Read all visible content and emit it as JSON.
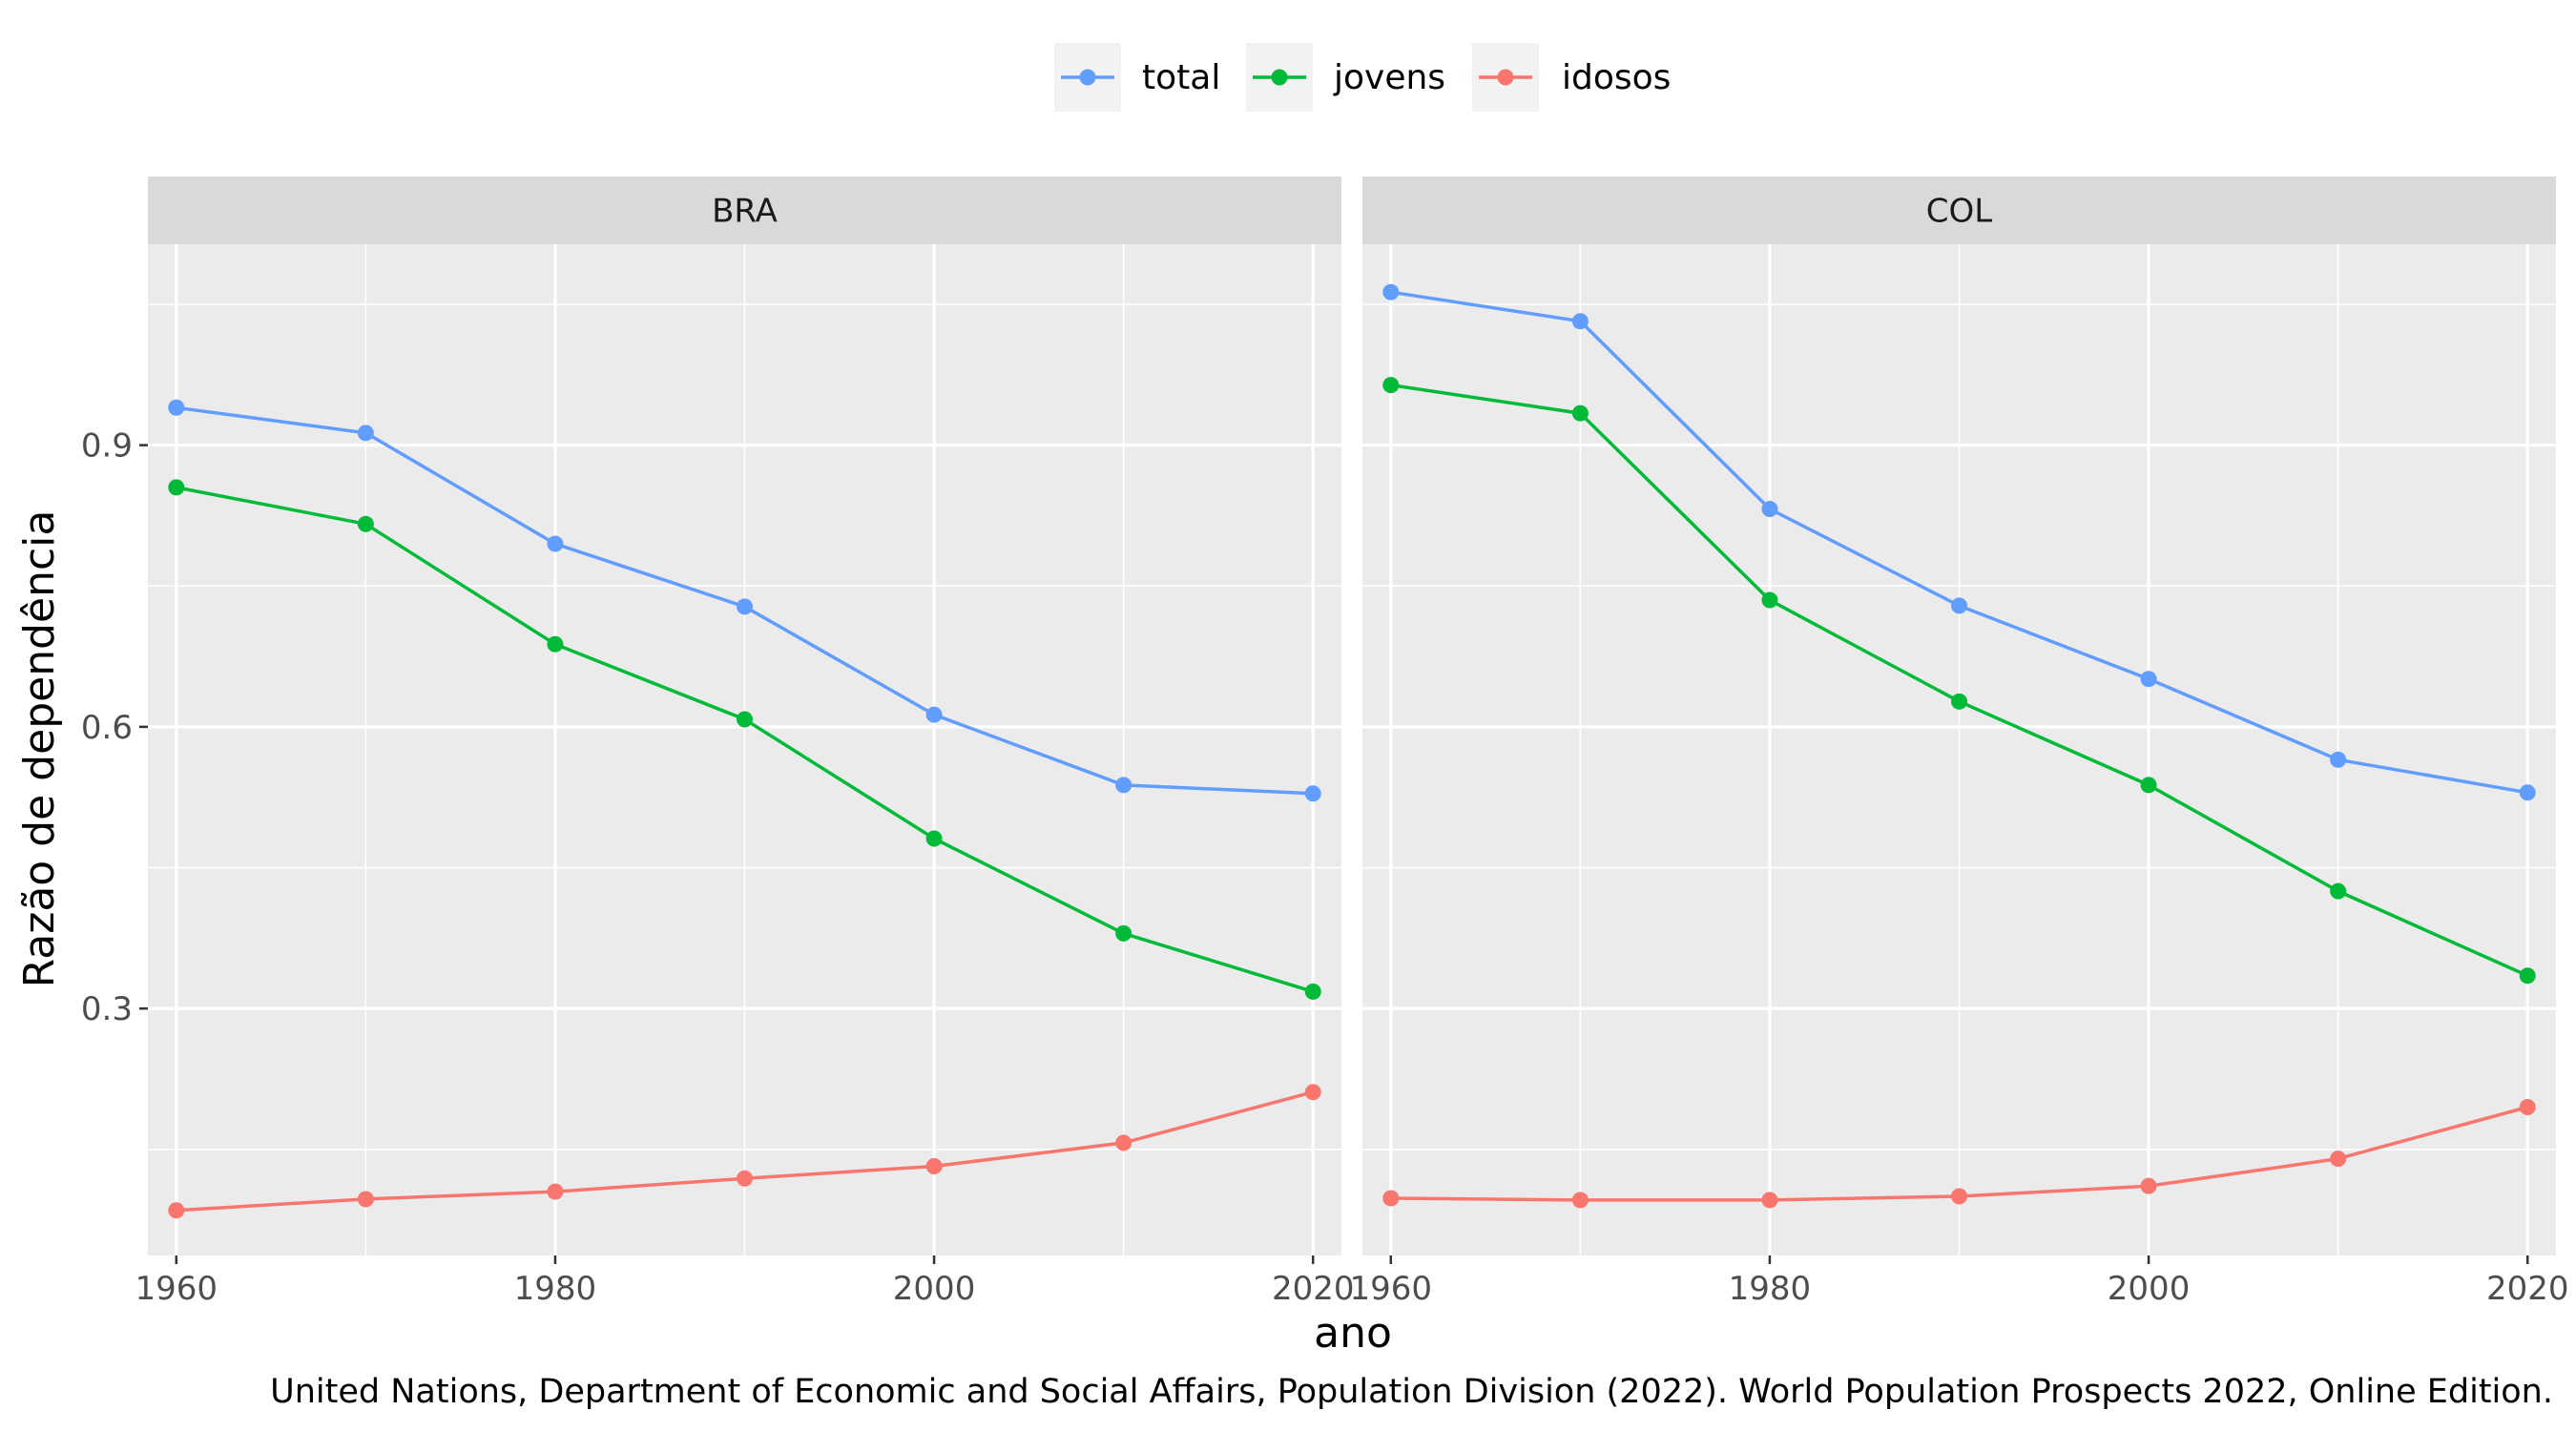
{
  "chart_data": {
    "type": "line",
    "xlabel": "ano",
    "ylabel": "Razão de dependência",
    "caption": "United Nations, Department of Economic and Social Affairs, Population Division (2022). World Population Prospects 2022, Online Edition.",
    "x": [
      1960,
      1970,
      1980,
      1990,
      2000,
      2010,
      2020
    ],
    "x_ticks": [
      "1960",
      "1980",
      "2000",
      "2020"
    ],
    "y_ticks": [
      "0.3",
      "0.6",
      "0.9"
    ],
    "xlim": [
      1958.5,
      2021.5
    ],
    "ylim": [
      0.037,
      1.114
    ],
    "grid": true,
    "legend": {
      "position": "top",
      "entries": [
        {
          "label": "total",
          "color": "#619CFF"
        },
        {
          "label": "jovens",
          "color": "#00BA38"
        },
        {
          "label": "idosos",
          "color": "#F8766D"
        }
      ]
    },
    "panels": [
      {
        "name": "BRA",
        "series": [
          {
            "name": "total",
            "color": "#619CFF",
            "values": [
              0.94,
              0.913,
              0.795,
              0.728,
              0.613,
              0.538,
              0.529
            ]
          },
          {
            "name": "jovens",
            "color": "#00BA38",
            "values": [
              0.855,
              0.816,
              0.688,
              0.608,
              0.481,
              0.38,
              0.318
            ]
          },
          {
            "name": "idosos",
            "color": "#F8766D",
            "values": [
              0.085,
              0.097,
              0.105,
              0.119,
              0.132,
              0.157,
              0.211
            ]
          }
        ]
      },
      {
        "name": "COL",
        "series": [
          {
            "name": "total",
            "color": "#619CFF",
            "values": [
              1.063,
              1.032,
              0.832,
              0.729,
              0.651,
              0.565,
              0.53
            ]
          },
          {
            "name": "jovens",
            "color": "#00BA38",
            "values": [
              0.964,
              0.934,
              0.735,
              0.627,
              0.538,
              0.425,
              0.335
            ]
          },
          {
            "name": "idosos",
            "color": "#F8766D",
            "values": [
              0.098,
              0.096,
              0.096,
              0.1,
              0.111,
              0.14,
              0.195
            ]
          }
        ]
      }
    ]
  }
}
